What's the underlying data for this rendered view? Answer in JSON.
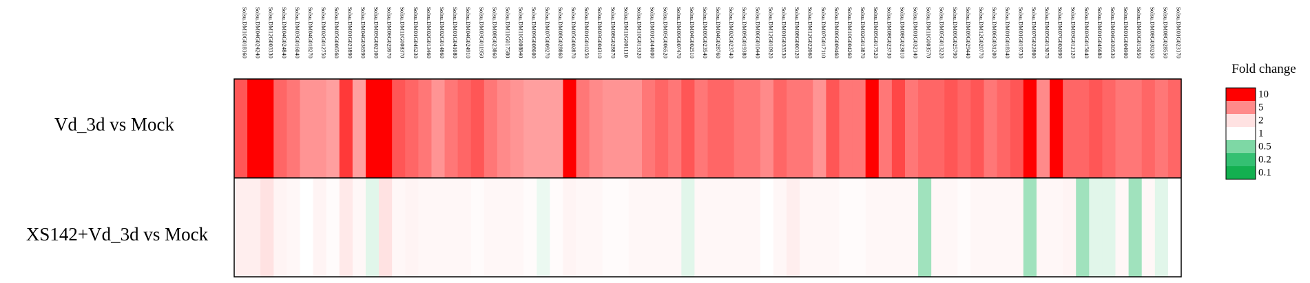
{
  "chart_data": {
    "type": "heatmap",
    "title": "",
    "columns": [
      "Solsu.DM10G018160",
      "Solsu.DM04G024240",
      "Solsu.DM12G003330",
      "Solsu.DM04G024840",
      "Solsu.DM03G016040",
      "Solsu.DM04G018270",
      "Solsu.DM02G012750",
      "Solsu.DM05G006560",
      "Solsu.DM01G021890",
      "Solsu.DM04G036590",
      "Solsu.DM05G002100",
      "Solsu.DM06G029970",
      "Solsu.DM11G008370",
      "Solsu.DM01G046230",
      "Solsu.DM02G013460",
      "Solsu.DM02G014860",
      "Solsu.DM01G041080",
      "Solsu.DM04G024910",
      "Solsu.DM03G011950",
      "Solsu.DM08G023860",
      "Solsu.DM11G017580",
      "Solsu.DM11G008840",
      "Solsu.DM09G008600",
      "Solsu.DM07G009270",
      "Solsu.DM08G028860",
      "Solsu.DM05G002870",
      "Solsu.DM01G010250",
      "Solsu.DM03G004310",
      "Solsu.DM08G028870",
      "Solsu.DM11G001110",
      "Solsu.DM10G013320",
      "Solsu.DM01G044000",
      "Solsu.DM05G006520",
      "Solsu.DM09G007470",
      "Solsu.DM04G002510",
      "Solsu.DM09G023540",
      "Solsu.DM04G028760",
      "Solsu.DM02G023740",
      "Solsu.DM09G019380",
      "Solsu.DM06G010440",
      "Solsu.DM12G010920",
      "Solsu.DM01G033530",
      "Solsu.DM08G000120",
      "Solsu.DM12G022060",
      "Solsu.DM07G017110",
      "Solsu.DM06G009460",
      "Solsu.DM10G004260",
      "Solsu.DM02G013870",
      "Solsu.DM05G017520",
      "Solsu.DM08G023730",
      "Solsu.DM08G023810",
      "Solsu.DM01G032140",
      "Solsu.DM11G003570",
      "Solsu.DM05G013220",
      "Solsu.DM09G025790",
      "Solsu.DM09G029440",
      "Solsu.DM12G020770",
      "Solsu.DM06G031200",
      "Solsu.DM01G018340",
      "Solsu.DM01G019730",
      "Solsu.DM07G022800",
      "Solsu.DM05G013070",
      "Solsu.DM07G002090",
      "Solsu.DM03G012120",
      "Solsu.DM03G015040",
      "Solsu.DM01G046680",
      "Solsu.DM04G030530",
      "Solsu.DM01G004900",
      "Solsu.DM03G015050",
      "Solsu.DM08G030250",
      "Solsu.DM08G028550",
      "Solsu.DM01G023170"
    ],
    "rows": [
      "Vd_3d vs Mock",
      "XS142+Vd_3d vs Mock"
    ],
    "values": [
      [
        6.5,
        10,
        10,
        6,
        5.5,
        4.5,
        4.5,
        4,
        7.5,
        4,
        10,
        10,
        6.5,
        6,
        5.5,
        4.5,
        5.5,
        6,
        6.5,
        5.5,
        5,
        4.5,
        4,
        4,
        4,
        10,
        5.5,
        5,
        4.5,
        4.5,
        4.5,
        5.5,
        6,
        5.5,
        6.5,
        5.5,
        6,
        6,
        5.5,
        5.5,
        5,
        6,
        5.5,
        5.5,
        4.5,
        6.5,
        5.5,
        5.5,
        10,
        5.5,
        7,
        5.5,
        6,
        6,
        6.5,
        6,
        6.5,
        5.5,
        6,
        6.5,
        10,
        5,
        10,
        6,
        6,
        6.5,
        6,
        5.5,
        5.5,
        6,
        5.5,
        6
      ],
      [
        1.5,
        1.5,
        2,
        1.3,
        1.2,
        1,
        1.3,
        1.1,
        1.7,
        1.2,
        0.85,
        2,
        1.2,
        1.3,
        1.2,
        1.2,
        1.2,
        1.2,
        1.1,
        1.2,
        1.2,
        1.2,
        1.1,
        0.9,
        1.1,
        1.3,
        1.2,
        1.2,
        1.1,
        1.1,
        1.2,
        1.2,
        1.2,
        1.2,
        0.85,
        1.2,
        1.2,
        1.2,
        1.2,
        1.2,
        1,
        1.2,
        1.5,
        1.2,
        1.2,
        1.2,
        1.1,
        1.1,
        1.2,
        1.2,
        1.2,
        1.2,
        0.6,
        1.2,
        1.2,
        1.1,
        1.2,
        1.2,
        1.2,
        1.2,
        0.6,
        1.2,
        1.2,
        1.3,
        0.6,
        0.85,
        0.85,
        1.2,
        0.6,
        1.2,
        0.85,
        1
      ]
    ],
    "color_scale": {
      "title": "Fold change",
      "ticks": [
        "10",
        "5",
        "2",
        "1",
        "0.5",
        "0.2",
        "0.1"
      ],
      "colors": [
        "#ff0000",
        "#ff8a8a",
        "#ffe2e2",
        "#ffffff",
        "#7ed8a5",
        "#34c072",
        "#13b050"
      ]
    }
  }
}
